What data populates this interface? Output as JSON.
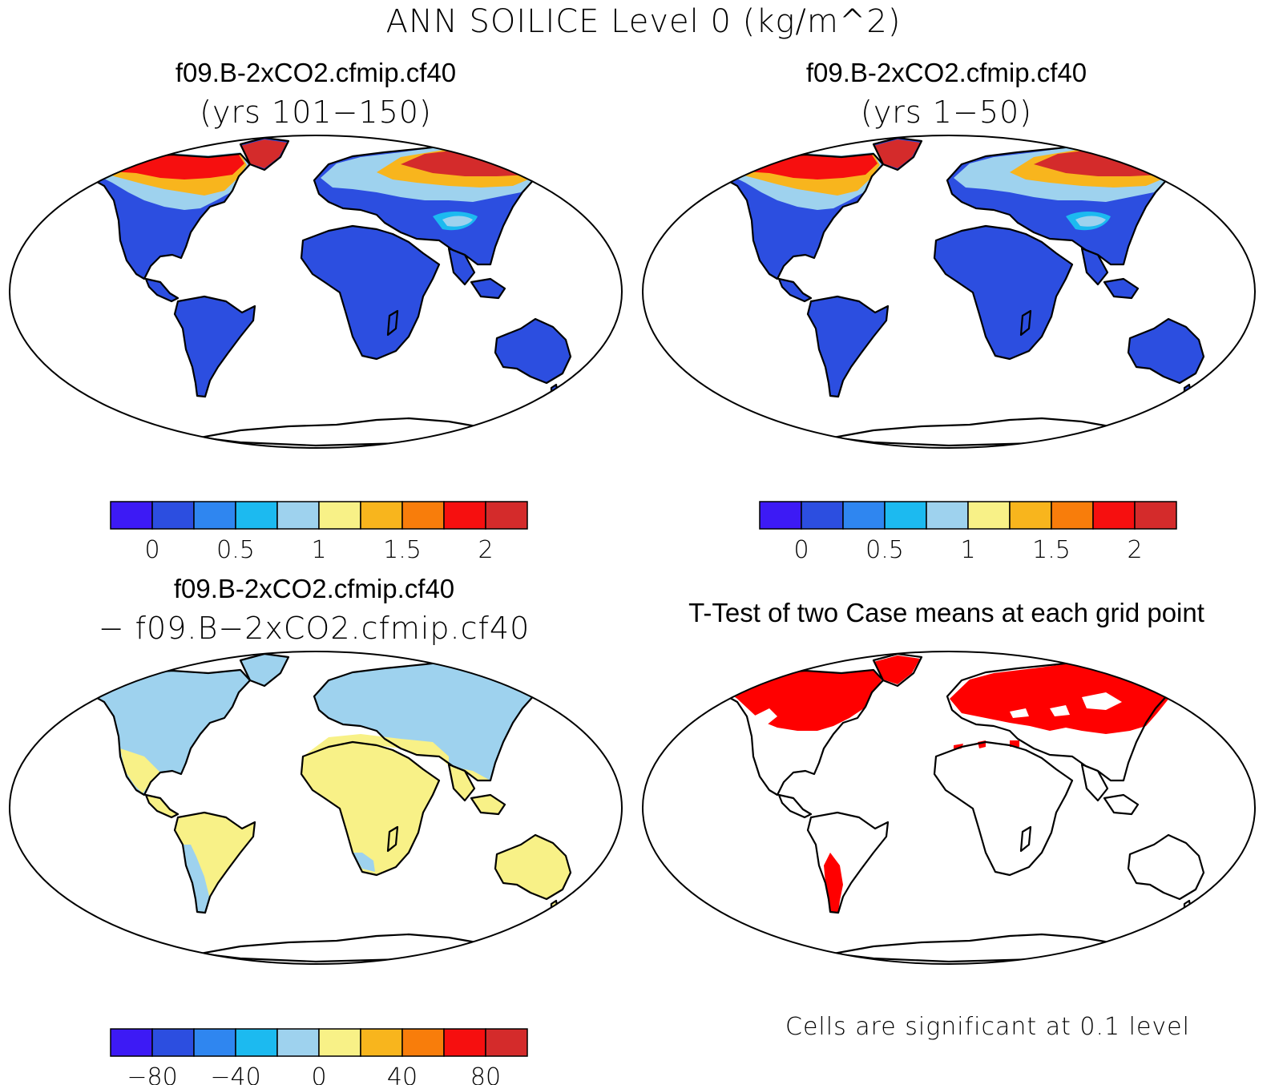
{
  "figure": {
    "title": "ANN SOILICE Level 0 (kg/m^2)"
  },
  "panels": [
    {
      "title": "f09.B-2xCO2.cfmip.cf40",
      "subtitle": "(yrs 101−150)",
      "colorbar": {
        "colors": [
          "#3d1af5",
          "#2c4ee0",
          "#2f86f0",
          "#1cbaf0",
          "#9ed2ee",
          "#f8f187",
          "#f8b51d",
          "#f87d0b",
          "#f60f0f",
          "#d42b2b"
        ],
        "tick_labels": [
          "0",
          "0.5",
          "1",
          "1.5",
          "2"
        ]
      }
    },
    {
      "title": "f09.B-2xCO2.cfmip.cf40",
      "subtitle": "(yrs 1−50)",
      "colorbar": {
        "colors": [
          "#3d1af5",
          "#2c4ee0",
          "#2f86f0",
          "#1cbaf0",
          "#9ed2ee",
          "#f8f187",
          "#f8b51d",
          "#f87d0b",
          "#f60f0f",
          "#d42b2b"
        ],
        "tick_labels": [
          "0",
          "0.5",
          "1",
          "1.5",
          "2"
        ]
      }
    },
    {
      "title": "f09.B-2xCO2.cfmip.cf40",
      "subtitle": "− f09.B−2xCO2.cfmip.cf40",
      "colorbar": {
        "colors": [
          "#3d1af5",
          "#2c4ee0",
          "#2f86f0",
          "#1cbaf0",
          "#9ed2ee",
          "#f8f187",
          "#f8b51d",
          "#f87d0b",
          "#f60f0f",
          "#d42b2b"
        ],
        "tick_labels": [
          "−80",
          "−40",
          "0",
          "40",
          "80"
        ]
      }
    },
    {
      "title": "T-Test of two Case means at each grid point",
      "note": "Cells are significant at 0.1 level",
      "significance_color": "#ff0000"
    }
  ]
}
